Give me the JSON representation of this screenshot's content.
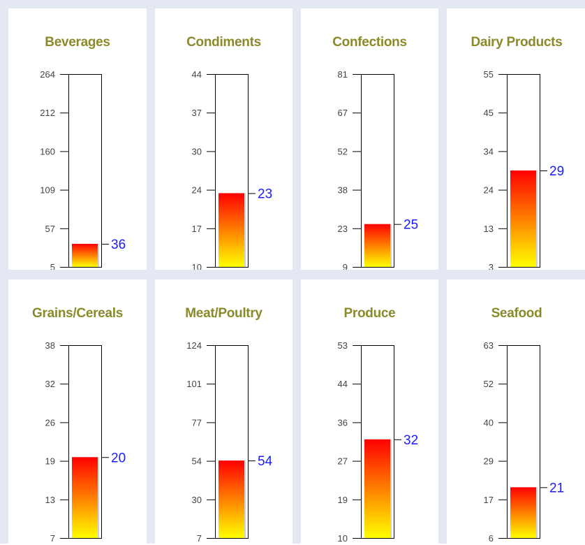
{
  "colors": {
    "title": "#8a8a2a",
    "tick_label": "#444444",
    "value_label": "#1a1aff",
    "fill_top": "#ff0000",
    "fill_bottom": "#ffff00",
    "panel_border": "#e3e8f3"
  },
  "chart_data": [
    {
      "type": "bar",
      "title": "Beverages",
      "ticks": [
        "5",
        "57",
        "109",
        "160",
        "212",
        "264"
      ],
      "ylim": [
        5,
        264
      ],
      "value": 36,
      "value_label": "36"
    },
    {
      "type": "bar",
      "title": "Condiments",
      "ticks": [
        "10",
        "17",
        "24",
        "30",
        "37",
        "44"
      ],
      "ylim": [
        10,
        44
      ],
      "value": 23,
      "value_label": "23"
    },
    {
      "type": "bar",
      "title": "Confections",
      "ticks": [
        "9",
        "23",
        "38",
        "52",
        "67",
        "81"
      ],
      "ylim": [
        9,
        81
      ],
      "value": 25,
      "value_label": "25"
    },
    {
      "type": "bar",
      "title": "Dairy Products",
      "ticks": [
        "3",
        "13",
        "24",
        "34",
        "45",
        "55"
      ],
      "ylim": [
        3,
        55
      ],
      "value": 29,
      "value_label": "29"
    },
    {
      "type": "bar",
      "title": "Grains/Cereals",
      "ticks": [
        "7",
        "13",
        "19",
        "26",
        "32",
        "38"
      ],
      "ylim": [
        7,
        38
      ],
      "value": 20,
      "value_label": "20"
    },
    {
      "type": "bar",
      "title": "Meat/Poultry",
      "ticks": [
        "7",
        "30",
        "54",
        "77",
        "101",
        "124"
      ],
      "ylim": [
        7,
        124
      ],
      "value": 54,
      "value_label": "54"
    },
    {
      "type": "bar",
      "title": "Produce",
      "ticks": [
        "10",
        "19",
        "27",
        "36",
        "44",
        "53"
      ],
      "ylim": [
        10,
        53
      ],
      "value": 32,
      "value_label": "32"
    },
    {
      "type": "bar",
      "title": "Seafood",
      "ticks": [
        "6",
        "17",
        "29",
        "40",
        "52",
        "63"
      ],
      "ylim": [
        6,
        63
      ],
      "value": 21,
      "value_label": "21"
    }
  ]
}
